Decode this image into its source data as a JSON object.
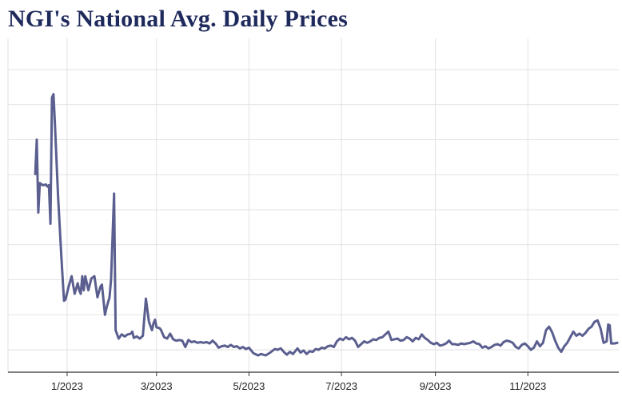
{
  "chart_data": {
    "type": "line",
    "title": "NGI's National Avg. Daily Prices",
    "xlabel": "",
    "ylabel": "",
    "x_tick_labels": [
      "1/2023",
      "3/2023",
      "5/2023",
      "7/2023",
      "9/2023",
      "11/2023"
    ],
    "x_tick_dates": [
      "2023-01-01",
      "2023-03-01",
      "2023-05-01",
      "2023-07-01",
      "2023-09-01",
      "2023-11-01"
    ],
    "xlim": [
      "2022-11-23",
      "2023-12-31"
    ],
    "ylim": [
      0,
      42
    ],
    "y_gridlines": [
      0,
      5,
      10,
      15,
      20,
      25,
      30,
      35,
      40
    ],
    "y_tick_labels_visible": false,
    "grid": true,
    "line_color": "#5b5f8f",
    "series": [
      {
        "points": [
          [
            "2022-12-11",
            25.1
          ],
          [
            "2022-12-12",
            30.0
          ],
          [
            "2022-12-13",
            19.6
          ],
          [
            "2022-12-14",
            23.8
          ],
          [
            "2022-12-16",
            23.5
          ],
          [
            "2022-12-18",
            23.6
          ],
          [
            "2022-12-19",
            23.3
          ],
          [
            "2022-12-20",
            23.5
          ],
          [
            "2022-12-21",
            18.0
          ],
          [
            "2022-12-22",
            36.0
          ],
          [
            "2022-12-23",
            36.5
          ],
          [
            "2022-12-24",
            32.0
          ],
          [
            "2022-12-26",
            22.0
          ],
          [
            "2022-12-28",
            14.0
          ],
          [
            "2022-12-29",
            10.5
          ],
          [
            "2022-12-30",
            7.0
          ],
          [
            "2022-12-31",
            7.2
          ],
          [
            "2023-01-02",
            9.0
          ],
          [
            "2023-01-04",
            10.5
          ],
          [
            "2023-01-06",
            8.0
          ],
          [
            "2023-01-08",
            9.5
          ],
          [
            "2023-01-09",
            8.5
          ],
          [
            "2023-01-10",
            8.0
          ],
          [
            "2023-01-11",
            10.5
          ],
          [
            "2023-01-12",
            8.5
          ],
          [
            "2023-01-13",
            10.5
          ],
          [
            "2023-01-15",
            8.5
          ],
          [
            "2023-01-17",
            10.2
          ],
          [
            "2023-01-19",
            10.5
          ],
          [
            "2023-01-21",
            7.5
          ],
          [
            "2023-01-23",
            9.0
          ],
          [
            "2023-01-24",
            9.3
          ],
          [
            "2023-01-26",
            5.0
          ],
          [
            "2023-01-27",
            6.0
          ],
          [
            "2023-01-29",
            7.5
          ],
          [
            "2023-01-30",
            10.0
          ],
          [
            "2023-02-01",
            22.3
          ],
          [
            "2023-02-02",
            2.8
          ],
          [
            "2023-02-04",
            1.6
          ],
          [
            "2023-02-06",
            2.2
          ],
          [
            "2023-02-08",
            1.9
          ],
          [
            "2023-02-10",
            2.2
          ],
          [
            "2023-02-12",
            2.3
          ],
          [
            "2023-02-13",
            2.6
          ],
          [
            "2023-02-14",
            1.7
          ],
          [
            "2023-02-16",
            1.9
          ],
          [
            "2023-02-18",
            1.6
          ],
          [
            "2023-02-20",
            2.0
          ],
          [
            "2023-02-22",
            7.3
          ],
          [
            "2023-02-24",
            4.0
          ],
          [
            "2023-02-26",
            2.8
          ],
          [
            "2023-02-27",
            3.8
          ],
          [
            "2023-02-28",
            4.3
          ],
          [
            "2023-03-01",
            3.2
          ],
          [
            "2023-03-03",
            3.1
          ],
          [
            "2023-03-04",
            2.8
          ],
          [
            "2023-03-06",
            1.8
          ],
          [
            "2023-03-08",
            1.6
          ],
          [
            "2023-03-10",
            2.3
          ],
          [
            "2023-03-12",
            1.5
          ],
          [
            "2023-03-14",
            1.3
          ],
          [
            "2023-03-16",
            1.4
          ],
          [
            "2023-03-18",
            1.3
          ],
          [
            "2023-03-20",
            0.4
          ],
          [
            "2023-03-22",
            1.4
          ],
          [
            "2023-03-24",
            1.1
          ],
          [
            "2023-03-26",
            1.2
          ],
          [
            "2023-03-28",
            1.0
          ],
          [
            "2023-03-30",
            1.1
          ],
          [
            "2023-04-01",
            1.0
          ],
          [
            "2023-04-03",
            1.1
          ],
          [
            "2023-04-05",
            0.9
          ],
          [
            "2023-04-07",
            1.3
          ],
          [
            "2023-04-09",
            0.9
          ],
          [
            "2023-04-11",
            0.3
          ],
          [
            "2023-04-13",
            0.5
          ],
          [
            "2023-04-15",
            0.6
          ],
          [
            "2023-04-17",
            0.4
          ],
          [
            "2023-04-19",
            0.7
          ],
          [
            "2023-04-21",
            0.4
          ],
          [
            "2023-04-23",
            0.5
          ],
          [
            "2023-04-25",
            0.2
          ],
          [
            "2023-04-27",
            0.4
          ],
          [
            "2023-04-29",
            0.1
          ],
          [
            "2023-05-01",
            0.3
          ],
          [
            "2023-05-04",
            -0.5
          ],
          [
            "2023-05-07",
            -0.8
          ],
          [
            "2023-05-09",
            -0.6
          ],
          [
            "2023-05-12",
            -0.8
          ],
          [
            "2023-05-15",
            -0.4
          ],
          [
            "2023-05-18",
            0.1
          ],
          [
            "2023-05-20",
            0.0
          ],
          [
            "2023-05-22",
            0.2
          ],
          [
            "2023-05-24",
            -0.3
          ],
          [
            "2023-05-26",
            -0.7
          ],
          [
            "2023-05-28",
            -0.3
          ],
          [
            "2023-05-30",
            -0.6
          ],
          [
            "2023-06-02",
            0.2
          ],
          [
            "2023-06-04",
            -0.4
          ],
          [
            "2023-06-06",
            -0.1
          ],
          [
            "2023-06-08",
            -0.6
          ],
          [
            "2023-06-10",
            -0.2
          ],
          [
            "2023-06-12",
            -0.3
          ],
          [
            "2023-06-14",
            0.1
          ],
          [
            "2023-06-16",
            0.0
          ],
          [
            "2023-06-18",
            0.3
          ],
          [
            "2023-06-20",
            0.2
          ],
          [
            "2023-06-22",
            0.5
          ],
          [
            "2023-06-24",
            0.6
          ],
          [
            "2023-06-26",
            0.4
          ],
          [
            "2023-06-28",
            1.2
          ],
          [
            "2023-06-30",
            1.6
          ],
          [
            "2023-07-02",
            1.4
          ],
          [
            "2023-07-04",
            1.8
          ],
          [
            "2023-07-06",
            1.5
          ],
          [
            "2023-07-08",
            1.7
          ],
          [
            "2023-07-10",
            1.3
          ],
          [
            "2023-07-12",
            0.4
          ],
          [
            "2023-07-14",
            0.8
          ],
          [
            "2023-07-16",
            1.2
          ],
          [
            "2023-07-18",
            1.0
          ],
          [
            "2023-07-20",
            1.2
          ],
          [
            "2023-07-22",
            1.5
          ],
          [
            "2023-07-24",
            1.4
          ],
          [
            "2023-07-26",
            1.7
          ],
          [
            "2023-07-28",
            1.8
          ],
          [
            "2023-07-30",
            2.2
          ],
          [
            "2023-08-01",
            2.6
          ],
          [
            "2023-08-03",
            1.4
          ],
          [
            "2023-08-05",
            1.5
          ],
          [
            "2023-08-07",
            1.6
          ],
          [
            "2023-08-09",
            1.3
          ],
          [
            "2023-08-11",
            1.4
          ],
          [
            "2023-08-13",
            1.8
          ],
          [
            "2023-08-15",
            1.6
          ],
          [
            "2023-08-17",
            1.2
          ],
          [
            "2023-08-19",
            1.7
          ],
          [
            "2023-08-21",
            1.5
          ],
          [
            "2023-08-23",
            2.2
          ],
          [
            "2023-08-25",
            1.7
          ],
          [
            "2023-08-27",
            1.4
          ],
          [
            "2023-08-29",
            1.0
          ],
          [
            "2023-08-31",
            0.8
          ],
          [
            "2023-09-02",
            1.0
          ],
          [
            "2023-09-04",
            0.6
          ],
          [
            "2023-09-06",
            0.7
          ],
          [
            "2023-09-08",
            0.9
          ],
          [
            "2023-09-10",
            1.3
          ],
          [
            "2023-09-12",
            0.8
          ],
          [
            "2023-09-14",
            0.8
          ],
          [
            "2023-09-16",
            0.7
          ],
          [
            "2023-09-18",
            0.9
          ],
          [
            "2023-09-20",
            0.8
          ],
          [
            "2023-09-22",
            0.9
          ],
          [
            "2023-09-24",
            1.0
          ],
          [
            "2023-09-26",
            1.2
          ],
          [
            "2023-09-28",
            0.9
          ],
          [
            "2023-09-30",
            0.8
          ],
          [
            "2023-10-02",
            0.3
          ],
          [
            "2023-10-04",
            0.5
          ],
          [
            "2023-10-06",
            0.2
          ],
          [
            "2023-10-08",
            0.4
          ],
          [
            "2023-10-10",
            0.7
          ],
          [
            "2023-10-12",
            0.8
          ],
          [
            "2023-10-14",
            0.6
          ],
          [
            "2023-10-16",
            1.1
          ],
          [
            "2023-10-18",
            1.3
          ],
          [
            "2023-10-20",
            1.2
          ],
          [
            "2023-10-22",
            1.0
          ],
          [
            "2023-10-24",
            0.4
          ],
          [
            "2023-10-26",
            0.2
          ],
          [
            "2023-10-28",
            0.7
          ],
          [
            "2023-10-30",
            0.9
          ],
          [
            "2023-11-01",
            0.5
          ],
          [
            "2023-11-03",
            0.0
          ],
          [
            "2023-11-05",
            0.3
          ],
          [
            "2023-11-07",
            1.2
          ],
          [
            "2023-11-09",
            0.5
          ],
          [
            "2023-11-11",
            1.0
          ],
          [
            "2023-11-13",
            2.8
          ],
          [
            "2023-11-15",
            3.3
          ],
          [
            "2023-11-17",
            2.5
          ],
          [
            "2023-11-19",
            1.3
          ],
          [
            "2023-11-21",
            0.3
          ],
          [
            "2023-11-23",
            -0.3
          ],
          [
            "2023-11-25",
            0.5
          ],
          [
            "2023-11-27",
            1.0
          ],
          [
            "2023-11-29",
            1.8
          ],
          [
            "2023-12-01",
            2.6
          ],
          [
            "2023-12-03",
            2.0
          ],
          [
            "2023-12-05",
            2.3
          ],
          [
            "2023-12-07",
            2.0
          ],
          [
            "2023-12-09",
            2.4
          ],
          [
            "2023-12-11",
            3.0
          ],
          [
            "2023-12-13",
            3.3
          ],
          [
            "2023-12-15",
            4.0
          ],
          [
            "2023-12-17",
            4.2
          ],
          [
            "2023-12-19",
            3.0
          ],
          [
            "2023-12-21",
            1.0
          ],
          [
            "2023-12-23",
            1.2
          ],
          [
            "2023-12-24",
            3.6
          ],
          [
            "2023-12-25",
            3.5
          ],
          [
            "2023-12-26",
            0.9
          ],
          [
            "2023-12-28",
            0.9
          ],
          [
            "2023-12-30",
            1.0
          ]
        ]
      }
    ]
  }
}
